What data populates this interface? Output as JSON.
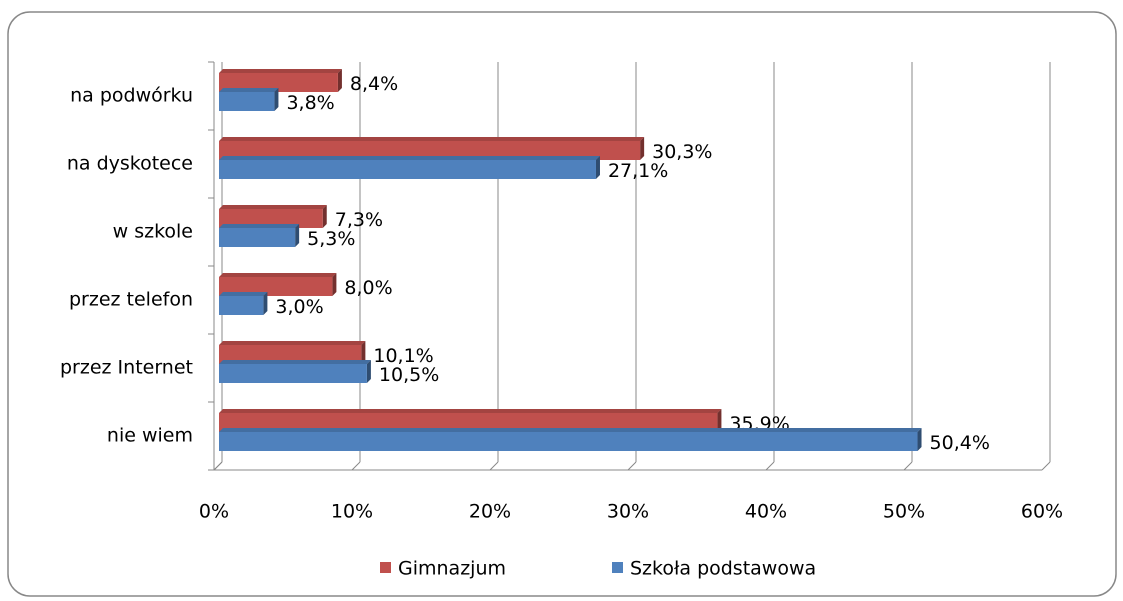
{
  "chart_data": {
    "type": "bar",
    "orientation": "horizontal",
    "categories": [
      "na podwórku",
      "na dyskotece",
      "w szkole",
      "przez telefon",
      "przez Internet",
      "nie wiem"
    ],
    "series": [
      {
        "name": "Gimnazjum",
        "color": "#c0504d",
        "values": [
          8.4,
          30.3,
          7.3,
          8.0,
          10.1,
          35.9
        ],
        "value_labels": [
          "8,4%",
          "30,3%",
          "7,3%",
          "8,0%",
          "10,1%",
          "35,9%"
        ]
      },
      {
        "name": "Szkoła podstawowa",
        "color": "#4f81bd",
        "values": [
          3.8,
          27.1,
          5.3,
          3.0,
          10.5,
          50.4
        ],
        "value_labels": [
          "3,8%",
          "27,1%",
          "5,3%",
          "3,0%",
          "10,5%",
          "50,4%"
        ]
      }
    ],
    "xlim": [
      0,
      60
    ],
    "xticks": [
      {
        "value": 0,
        "label": "0%"
      },
      {
        "value": 10,
        "label": "10%"
      },
      {
        "value": 20,
        "label": "20%"
      },
      {
        "value": 30,
        "label": "30%"
      },
      {
        "value": 40,
        "label": "40%"
      },
      {
        "value": 50,
        "label": "50%"
      },
      {
        "value": 60,
        "label": "60%"
      }
    ],
    "grid": true,
    "legend": "bottom"
  }
}
